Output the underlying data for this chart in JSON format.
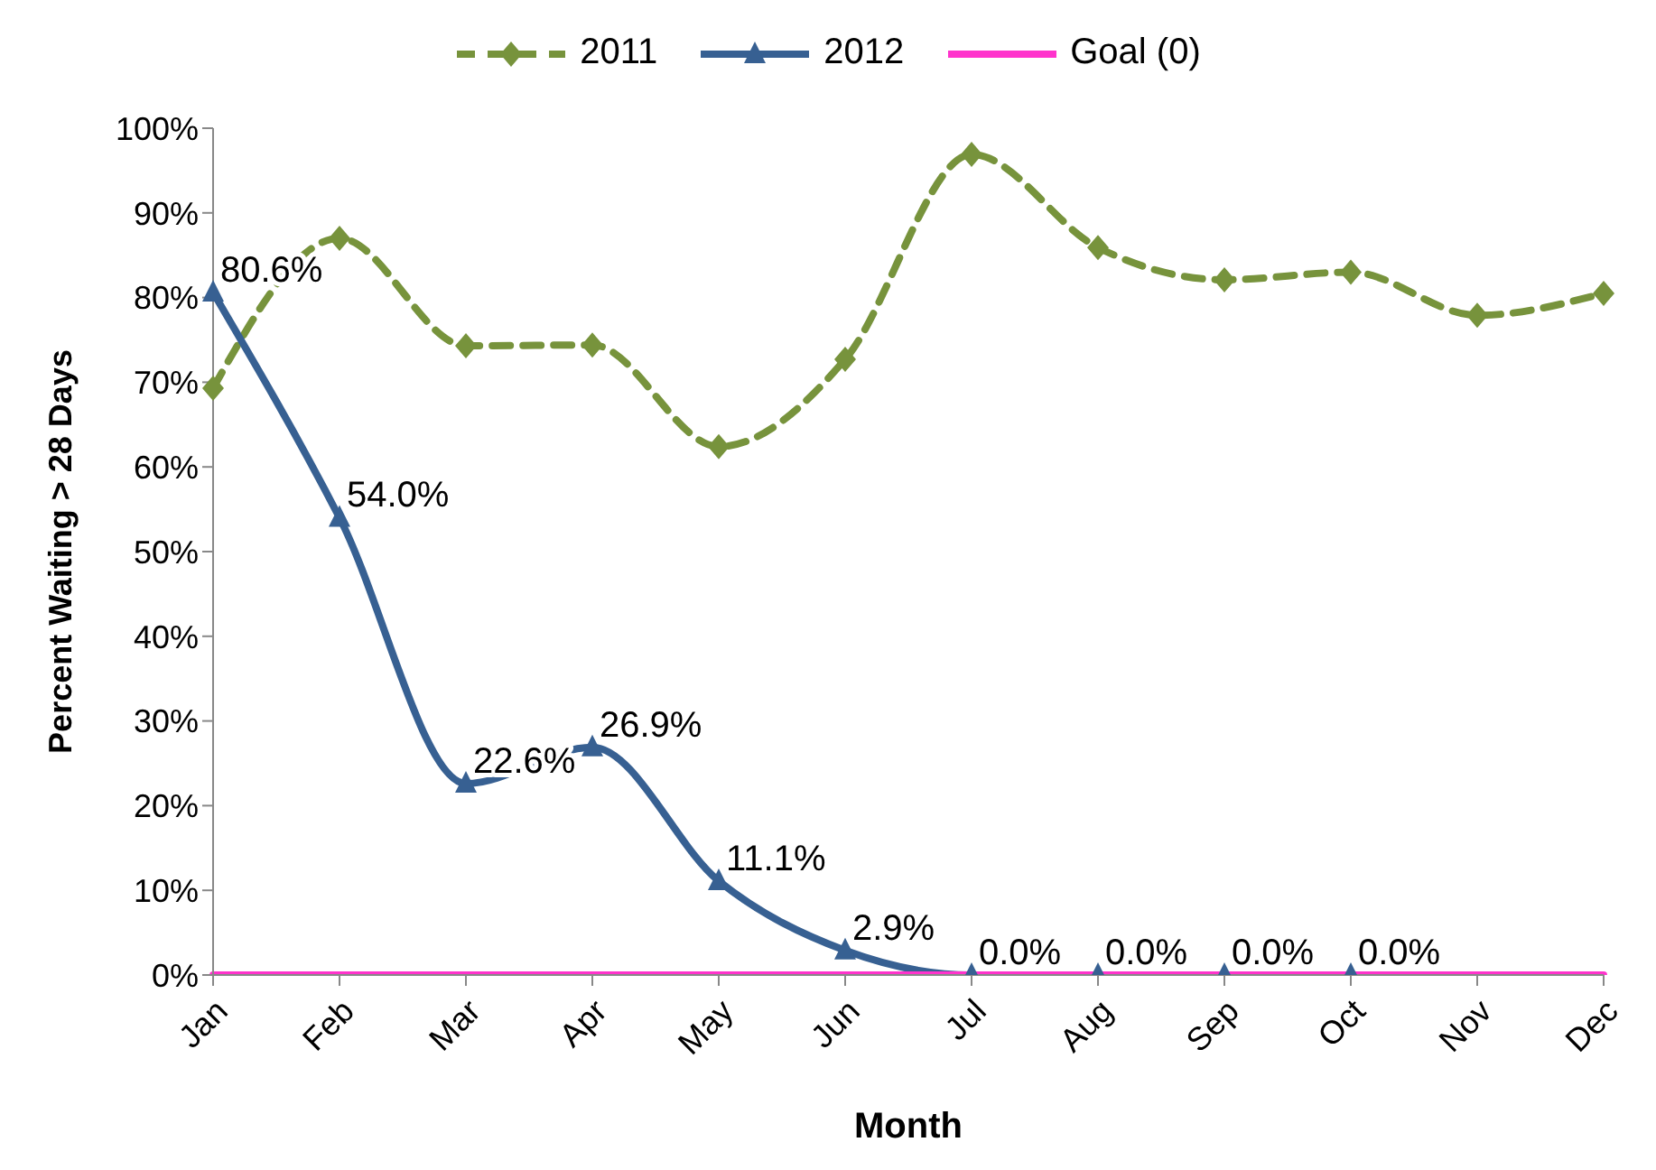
{
  "chart_data": {
    "type": "line",
    "xlabel": "Month",
    "ylabel": "Percent Waiting > 28 Days",
    "categories": [
      "Jan",
      "Feb",
      "Mar",
      "Apr",
      "May",
      "Jun",
      "Jul",
      "Aug",
      "Sep",
      "Oct",
      "Nov",
      "Dec"
    ],
    "series": [
      {
        "name": "2011",
        "color": "#77933c",
        "marker": "diamond",
        "line_style": "dashed",
        "values": [
          69.3,
          87.0,
          74.3,
          74.4,
          62.4,
          72.7,
          96.9,
          85.9,
          82.1,
          83.0,
          77.9,
          80.5
        ]
      },
      {
        "name": "2012",
        "color": "#376092",
        "marker": "triangle",
        "line_style": "solid",
        "values": [
          80.6,
          54.0,
          22.6,
          26.9,
          11.1,
          2.9,
          0.0,
          0.0,
          0.0,
          0.0,
          null,
          null
        ],
        "value_labels": [
          "80.6%",
          "54.0%",
          "22.6%",
          "26.9%",
          "11.1%",
          "2.9%",
          "0.0%",
          "0.0%",
          "0.0%",
          "0.0%",
          null,
          null
        ]
      },
      {
        "name": "Goal (0)",
        "color": "#ff33cc",
        "marker": "none",
        "line_style": "solid",
        "values": [
          0,
          0,
          0,
          0,
          0,
          0,
          0,
          0,
          0,
          0,
          0,
          0
        ]
      }
    ],
    "ylim": [
      0,
      100
    ],
    "yticks": [
      {
        "value": 0,
        "label": "0%"
      },
      {
        "value": 10,
        "label": "10%"
      },
      {
        "value": 20,
        "label": "20%"
      },
      {
        "value": 30,
        "label": "30%"
      },
      {
        "value": 40,
        "label": "40%"
      },
      {
        "value": 50,
        "label": "50%"
      },
      {
        "value": 60,
        "label": "60%"
      },
      {
        "value": 70,
        "label": "70%"
      },
      {
        "value": 80,
        "label": "80%"
      },
      {
        "value": 90,
        "label": "90%"
      },
      {
        "value": 100,
        "label": "100%"
      }
    ],
    "grid": false,
    "legend": "top"
  }
}
